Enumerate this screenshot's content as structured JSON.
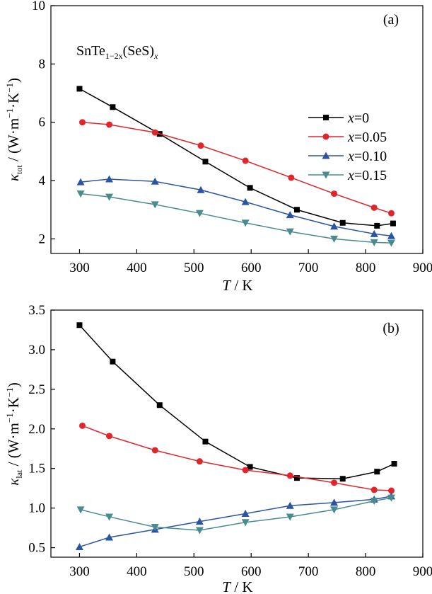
{
  "chart_data": [
    {
      "type": "line",
      "panel_label": "(a)",
      "annotation": {
        "base": "SnTe",
        "sub": "1−2x",
        "paren": "(SeS)",
        "paren_sub": "x"
      },
      "xlabel": {
        "var": "T",
        "unit": " / K"
      },
      "ylabel": {
        "var": "κ",
        "sub": "tot",
        "unit_pre": " / (W·m",
        "sup1": "−1",
        "mid": "·K",
        "sup2": "−1",
        "close": ")"
      },
      "xlim": [
        250,
        900
      ],
      "ylim": [
        1.5,
        10
      ],
      "xticks": [
        "300",
        "400",
        "500",
        "600",
        "700",
        "800",
        "900"
      ],
      "yticks": [
        "2",
        "4",
        "6",
        "8",
        "10"
      ],
      "grid": false,
      "legend_position": "right",
      "series": [
        {
          "name": "x=0",
          "var": "x",
          "eq": "=0",
          "color": "#000000",
          "marker": "square",
          "x": [
            300,
            358,
            440,
            520,
            598,
            680,
            760,
            820,
            848
          ],
          "y": [
            7.15,
            6.52,
            5.6,
            4.65,
            3.75,
            3.0,
            2.55,
            2.45,
            2.53
          ]
        },
        {
          "name": "x=0.05",
          "var": "x",
          "eq": "=0.05",
          "color": "#e0262b",
          "marker": "circle",
          "x": [
            305,
            352,
            432,
            512,
            590,
            670,
            745,
            815,
            845
          ],
          "y": [
            6.0,
            5.92,
            5.65,
            5.2,
            4.68,
            4.1,
            3.55,
            3.07,
            2.88
          ]
        },
        {
          "name": "x=0.10",
          "var": "x",
          "eq": "=0.10",
          "color": "#2b55a3",
          "marker": "triangle-up",
          "x": [
            302,
            352,
            432,
            512,
            590,
            668,
            745,
            815,
            845
          ],
          "y": [
            3.95,
            4.05,
            3.97,
            3.68,
            3.27,
            2.82,
            2.43,
            2.17,
            2.1
          ]
        },
        {
          "name": "x=0.15",
          "var": "x",
          "eq": "=0.15",
          "color": "#4a8c8e",
          "marker": "triangle-down",
          "x": [
            302,
            352,
            432,
            510,
            590,
            668,
            745,
            815,
            845
          ],
          "y": [
            3.55,
            3.44,
            3.18,
            2.88,
            2.55,
            2.25,
            2.0,
            1.88,
            1.86
          ]
        }
      ]
    },
    {
      "type": "line",
      "panel_label": "(b)",
      "xlabel": {
        "var": "T",
        "unit": " / K"
      },
      "ylabel": {
        "var": "κ",
        "sub": "lat",
        "unit_pre": " / (W·m",
        "sup1": "−1",
        "mid": "·K",
        "sup2": "−1",
        "close": ")"
      },
      "xlim": [
        250,
        900
      ],
      "ylim": [
        0.38,
        3.5
      ],
      "xticks": [
        "300",
        "400",
        "500",
        "600",
        "700",
        "800",
        "900"
      ],
      "yticks": [
        "0.5",
        "1.0",
        "1.5",
        "2.0",
        "2.5",
        "3.0",
        "3.5"
      ],
      "grid": false,
      "series": [
        {
          "color": "#000000",
          "marker": "square",
          "x": [
            300,
            358,
            440,
            520,
            598,
            680,
            760,
            820,
            850
          ],
          "y": [
            3.31,
            2.85,
            2.3,
            1.84,
            1.52,
            1.38,
            1.37,
            1.46,
            1.56
          ]
        },
        {
          "color": "#e0262b",
          "marker": "circle",
          "x": [
            305,
            352,
            432,
            510,
            590,
            668,
            745,
            815,
            845
          ],
          "y": [
            2.04,
            1.91,
            1.73,
            1.59,
            1.48,
            1.41,
            1.32,
            1.23,
            1.22
          ]
        },
        {
          "color": "#2b55a3",
          "marker": "triangle-up",
          "x": [
            300,
            352,
            432,
            510,
            590,
            668,
            745,
            815,
            845
          ],
          "y": [
            0.51,
            0.63,
            0.73,
            0.83,
            0.93,
            1.03,
            1.07,
            1.11,
            1.15
          ]
        },
        {
          "color": "#4a8c8e",
          "marker": "triangle-down",
          "x": [
            302,
            352,
            432,
            510,
            590,
            668,
            745,
            815,
            845
          ],
          "y": [
            0.98,
            0.89,
            0.76,
            0.72,
            0.82,
            0.89,
            0.98,
            1.09,
            1.13
          ]
        }
      ]
    }
  ]
}
